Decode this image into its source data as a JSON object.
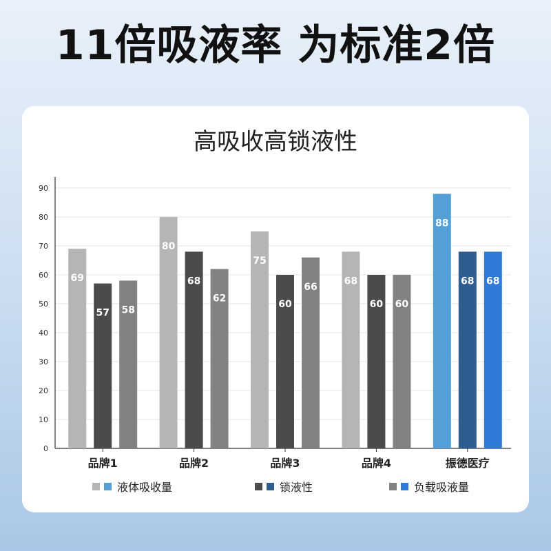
{
  "headline": "11倍吸液率 为标准2倍",
  "chart_data": {
    "type": "bar",
    "title": "高吸收高锁液性",
    "categories": [
      "品牌1",
      "品牌2",
      "品牌3",
      "品牌4",
      "振德医疗"
    ],
    "series": [
      {
        "name": "液体吸收量",
        "values": [
          69,
          80,
          75,
          68,
          88
        ]
      },
      {
        "name": "锁液性",
        "values": [
          57,
          68,
          60,
          60,
          68
        ]
      },
      {
        "name": "负载吸液量",
        "values": [
          58,
          62,
          66,
          60,
          68
        ]
      }
    ],
    "ylim": [
      0,
      90
    ],
    "yticks": [
      0,
      10,
      20,
      30,
      40,
      50,
      60,
      70,
      80,
      90
    ],
    "grid": true,
    "legend": "bottom",
    "colors": {
      "competitor": [
        "#b5b5b5",
        "#4b4b4b",
        "#828282"
      ],
      "highlight": [
        "#539fd6",
        "#2f5d8f",
        "#2f7ad6"
      ]
    }
  }
}
